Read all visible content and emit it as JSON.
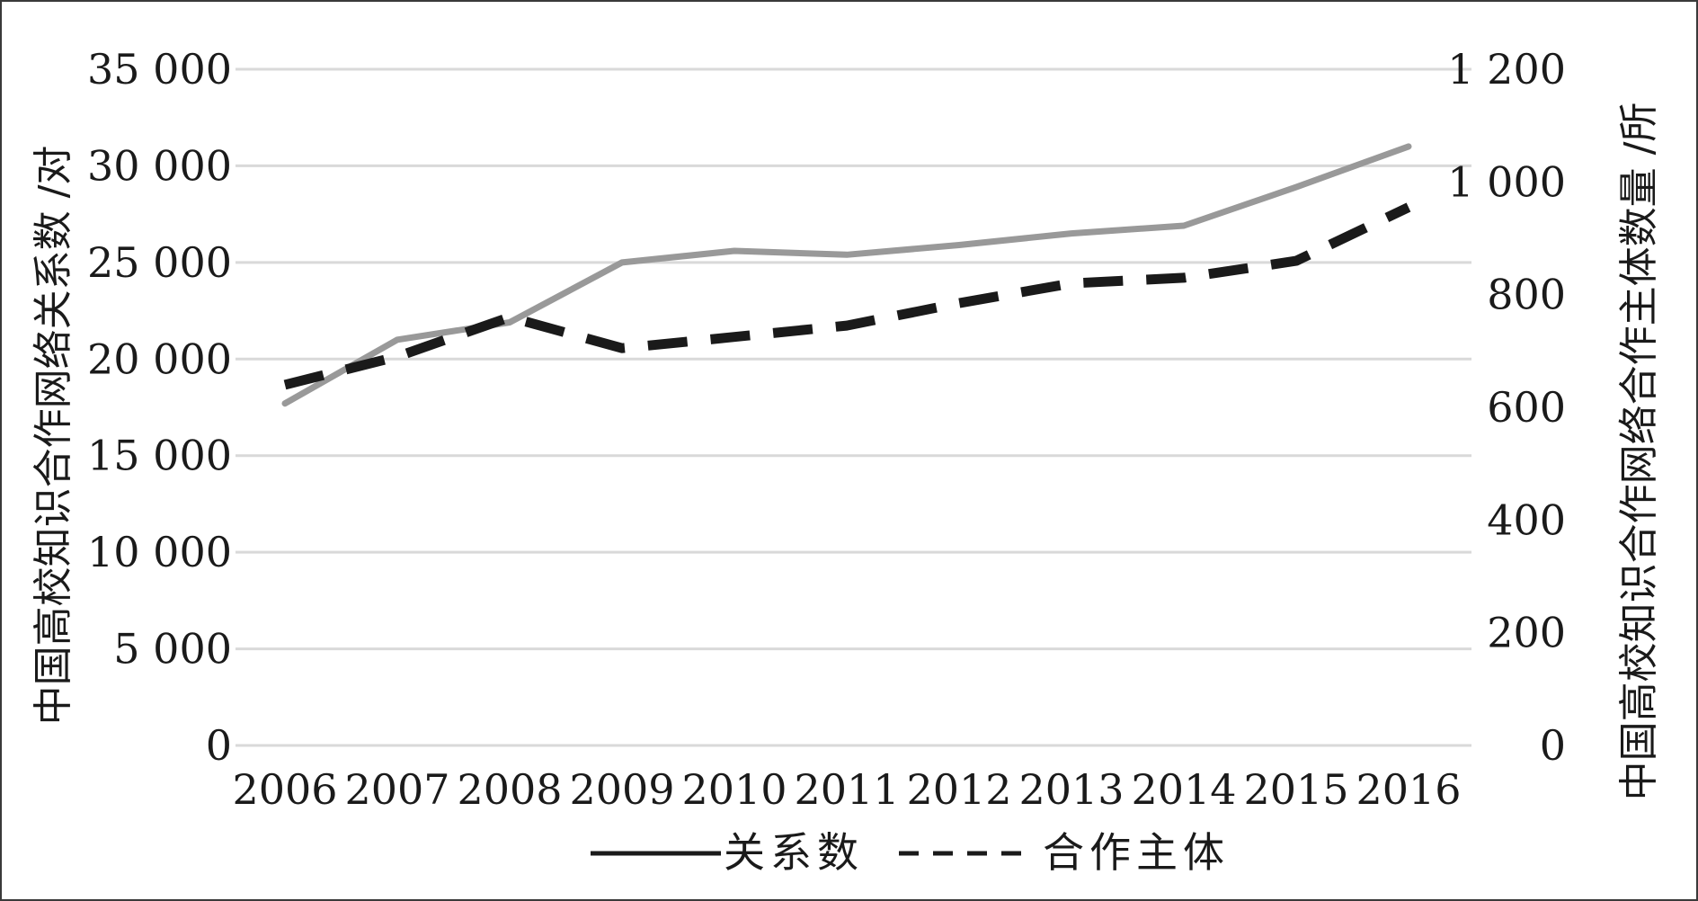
{
  "chart_data": {
    "type": "line",
    "categories": [
      "2006",
      "2007",
      "2008",
      "2009",
      "2010",
      "2011",
      "2012",
      "2013",
      "2014",
      "2015",
      "2016"
    ],
    "series": [
      {
        "name": "关系数",
        "axis": "left",
        "color": "#999999",
        "line_style": "solid",
        "values": [
          17700,
          21000,
          21900,
          25000,
          25600,
          25400,
          25900,
          26500,
          26900,
          28900,
          31000
        ]
      },
      {
        "name": "合作主体",
        "axis": "right",
        "color": "#1a1a1a",
        "line_style": "dashed",
        "values": [
          640,
          690,
          760,
          705,
          725,
          745,
          785,
          820,
          830,
          860,
          955
        ]
      }
    ],
    "y_left": {
      "label": "中国高校知识合作网络关系数 /对",
      "ylim": [
        0,
        35000
      ],
      "ticks": [
        0,
        5000,
        10000,
        15000,
        20000,
        25000,
        30000,
        35000
      ],
      "tick_labels": [
        "0",
        "5 000",
        "10 000",
        "15 000",
        "20 000",
        "25 000",
        "30 000",
        "35 000"
      ]
    },
    "y_right": {
      "label": "中国高校知识合作网络合作主体数量 /所",
      "ylim": [
        0,
        1200
      ],
      "ticks": [
        0,
        200,
        400,
        600,
        800,
        1000,
        1200
      ],
      "tick_labels": [
        "0",
        "200",
        "400",
        "600",
        "800",
        "1 000",
        "1 200"
      ]
    },
    "legend": {
      "placement": "bottom-center",
      "entries": [
        {
          "label": "关系数",
          "line_style": "solid"
        },
        {
          "label": "合作主体",
          "line_style": "dashed"
        }
      ]
    },
    "grid": true,
    "gridline_color": "#d9d9d9",
    "title": "",
    "xlabel": ""
  }
}
